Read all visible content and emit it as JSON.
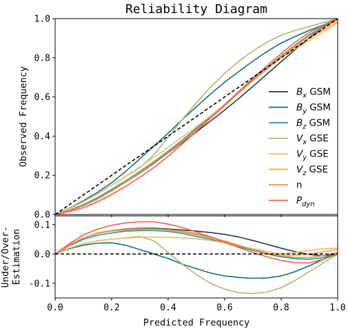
{
  "chart_data": [
    {
      "type": "line",
      "title": "Reliability Diagram",
      "xlabel": "",
      "ylabel": "Observed Frequency",
      "xlim": [
        0,
        1
      ],
      "ylim": [
        0,
        1
      ],
      "x_ticks": [
        "0.0",
        "0.2",
        "0.4",
        "0.6",
        "0.8",
        "1.0"
      ],
      "y_ticks": [
        "0.0",
        "0.2",
        "0.4",
        "0.6",
        "0.8",
        "1.0"
      ],
      "x_tick_labels_visible": false,
      "grid": false,
      "legend_placement": "center-right",
      "reference_line": {
        "style": "dashed",
        "color": "#000000",
        "points": [
          [
            0,
            0
          ],
          [
            1,
            1
          ]
        ]
      },
      "x": [
        0.0,
        0.1,
        0.2,
        0.3,
        0.4,
        0.5,
        0.6,
        0.7,
        0.8,
        0.9,
        1.0
      ]
    },
    {
      "type": "line",
      "title": "",
      "xlabel": "Predicted Frequency",
      "ylabel": "Under/Over-\nEstimation",
      "xlim": [
        0,
        1
      ],
      "ylim": [
        -0.15,
        0.13
      ],
      "x_ticks": [
        "0.0",
        "0.2",
        "0.4",
        "0.6",
        "0.8",
        "1.0"
      ],
      "y_ticks": [
        "-0.1",
        "0.0",
        "0.1"
      ],
      "grid": false,
      "reference_line": {
        "style": "dashed",
        "color": "#000000",
        "y": 0.0
      },
      "x": [
        0.0,
        0.05,
        0.1,
        0.15,
        0.2,
        0.25,
        0.3,
        0.35,
        0.4,
        0.45,
        0.5,
        0.55,
        0.6,
        0.65,
        0.7,
        0.75,
        0.8,
        0.85,
        0.9,
        0.95,
        1.0
      ]
    }
  ],
  "series": [
    {
      "name": "B_x GSM",
      "label_base": "B",
      "label_sub": "x",
      "label_suffix": "GSM",
      "italic": true,
      "color": "#1f3b4d",
      "deviation": [
        0.0,
        0.03,
        0.055,
        0.07,
        0.08,
        0.085,
        0.088,
        0.088,
        0.085,
        0.082,
        0.078,
        0.073,
        0.067,
        0.058,
        0.046,
        0.033,
        0.02,
        0.008,
        -0.002,
        -0.006,
        0.0
      ]
    },
    {
      "name": "B_y GSM",
      "label_base": "B",
      "label_sub": "y",
      "label_suffix": "GSM",
      "italic": true,
      "color": "#0e6e74",
      "deviation": [
        0.0,
        0.018,
        0.03,
        0.037,
        0.038,
        0.03,
        0.015,
        0.0,
        -0.015,
        -0.035,
        -0.05,
        -0.065,
        -0.075,
        -0.08,
        -0.083,
        -0.082,
        -0.075,
        -0.06,
        -0.04,
        -0.018,
        0.0
      ]
    },
    {
      "name": "B_z GSM",
      "label_base": "B",
      "label_sub": "z",
      "label_suffix": "GSM",
      "italic": true,
      "color": "#1a9e8f",
      "deviation": [
        0.0,
        0.028,
        0.05,
        0.064,
        0.072,
        0.078,
        0.08,
        0.08,
        0.077,
        0.07,
        0.06,
        0.05,
        0.038,
        0.025,
        0.012,
        0.0,
        -0.01,
        -0.016,
        -0.018,
        -0.012,
        0.0
      ]
    },
    {
      "name": "V_x GSE",
      "label_base": "V",
      "label_sub": "x",
      "label_suffix": "GSE",
      "italic": true,
      "color": "#a9b96b",
      "deviation": [
        0.0,
        0.02,
        0.035,
        0.045,
        0.05,
        0.055,
        0.06,
        0.045,
        0.005,
        -0.035,
        -0.07,
        -0.1,
        -0.12,
        -0.132,
        -0.135,
        -0.13,
        -0.115,
        -0.09,
        -0.06,
        -0.03,
        0.0
      ]
    },
    {
      "name": "V_y GSE",
      "label_base": "V",
      "label_sub": "y",
      "label_suffix": "GSE",
      "italic": true,
      "color": "#f2b96b",
      "deviation": [
        0.0,
        0.02,
        0.035,
        0.045,
        0.05,
        0.054,
        0.057,
        0.058,
        0.057,
        0.055,
        0.052,
        0.046,
        0.038,
        0.028,
        0.018,
        0.008,
        0.0,
        0.005,
        0.012,
        0.018,
        0.02
      ]
    },
    {
      "name": "V_z GSE",
      "label_base": "V",
      "label_sub": "z",
      "label_suffix": "GSE",
      "italic": true,
      "color": "#f5a742",
      "deviation": [
        0.0,
        0.03,
        0.055,
        0.07,
        0.078,
        0.082,
        0.084,
        0.085,
        0.083,
        0.078,
        0.07,
        0.058,
        0.045,
        0.03,
        0.015,
        0.002,
        -0.005,
        -0.005,
        0.0,
        0.008,
        0.015
      ]
    },
    {
      "name": "n",
      "label_base": "n",
      "label_sub": "",
      "label_suffix": "",
      "italic": false,
      "color": "#f08a4b",
      "deviation": [
        0.0,
        0.03,
        0.055,
        0.072,
        0.08,
        0.084,
        0.086,
        0.085,
        0.082,
        0.075,
        0.066,
        0.055,
        0.042,
        0.028,
        0.015,
        0.003,
        -0.007,
        -0.012,
        -0.012,
        -0.005,
        0.005
      ]
    },
    {
      "name": "P_dyn",
      "label_base": "P",
      "label_sub": "dyn",
      "label_suffix": "",
      "italic": true,
      "color": "#ee5d4d",
      "deviation": [
        0.0,
        0.035,
        0.065,
        0.085,
        0.098,
        0.106,
        0.11,
        0.11,
        0.102,
        0.09,
        0.075,
        0.058,
        0.04,
        0.022,
        0.005,
        -0.01,
        -0.022,
        -0.03,
        -0.03,
        -0.018,
        0.0
      ]
    }
  ]
}
